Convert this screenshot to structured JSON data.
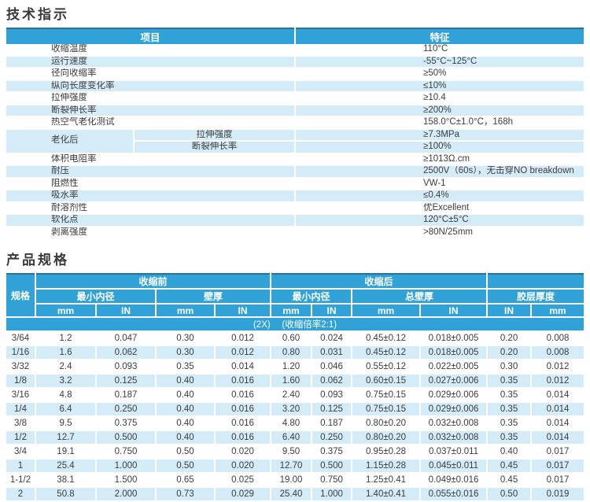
{
  "colors": {
    "header_blue": "#31a2d8",
    "row_light_blue": "#d4ebf8",
    "top_border_blue": "#2a6f9f",
    "text": "#3d3d3d"
  },
  "tech": {
    "title": "技术指示",
    "headers": {
      "item": "项目",
      "feature": "特征"
    },
    "rows": [
      {
        "item": "收缩温度",
        "value": "110°C",
        "tint": false
      },
      {
        "item": "运行速度",
        "value": "-55°C~125°C",
        "tint": true
      },
      {
        "item": "径向收缩率",
        "value": "≥50%",
        "tint": false
      },
      {
        "item": "纵向长度变化率",
        "value": "≤10%",
        "tint": true
      },
      {
        "item": "拉伸强度",
        "value": "≥10.4",
        "tint": false
      },
      {
        "item": "断裂伸长率",
        "value": "≥200%",
        "tint": true
      },
      {
        "item": "热空气老化测试",
        "value": "158.0°C±1.0°C，168h",
        "tint": false
      },
      {
        "group": "老化后",
        "item": "拉伸强度",
        "value": "≥7.3MPa",
        "tint": true,
        "item_white": true
      },
      {
        "in_group": true,
        "item": "断裂伸长率",
        "value": "≥100%",
        "tint": true
      },
      {
        "item": "体积电阻率",
        "value": "≥1013Ω.cm",
        "tint": false
      },
      {
        "item": "耐压",
        "value": "2500V（60s），无击穿NO breakdown",
        "tint": true
      },
      {
        "item": "阻燃性",
        "value": "VW-1",
        "tint": false
      },
      {
        "item": "吸水率",
        "value": "≤0.4%",
        "tint": true
      },
      {
        "item": "耐溶剂性",
        "value": "优Excellent",
        "tint": false
      },
      {
        "item": "软化点",
        "value": "120°C±5°C",
        "tint": true
      },
      {
        "item": "剥离强度",
        "value": ">80N/25mm",
        "tint": false
      }
    ]
  },
  "spec": {
    "title": "产品规格",
    "header": {
      "spec_col": "规格",
      "before": "收缩前",
      "after": "收缩后",
      "min_id": "最小内径",
      "wall": "壁厚",
      "total_wall": "总壁厚",
      "adhesive": "胶层厚度",
      "units": [
        "mm",
        "IN",
        "mm",
        "IN",
        "mm",
        "IN",
        "mm",
        "IN",
        "IN",
        "mm"
      ]
    },
    "ratio_note": "(2X)　 (收缩倍率2:1)",
    "rows": [
      [
        "3/64",
        "1.2",
        "0.047",
        "0.30",
        "0.012",
        "0.60",
        "0.024",
        "0.45±0.12",
        "0.018±0.005",
        "0.20",
        "0.008"
      ],
      [
        "1/16",
        "1.6",
        "0.062",
        "0.30",
        "0.012",
        "0.80",
        "0.031",
        "0.45±0.12",
        "0.018±0.005",
        "0.20",
        "0.008"
      ],
      [
        "3/32",
        "2.4",
        "0.093",
        "0.35",
        "0.014",
        "1.20",
        "0.046",
        "0.55±0.12",
        "0.022±0.005",
        "0.30",
        "0.012"
      ],
      [
        "1/8",
        "3.2",
        "0.125",
        "0.40",
        "0.016",
        "1.60",
        "0.062",
        "0.60±0.15",
        "0.027±0.006",
        "0.35",
        "0.012"
      ],
      [
        "3/16",
        "4.8",
        "0.187",
        "0.40",
        "0.016",
        "2.40",
        "0.093",
        "0.75±0.15",
        "0.029±0.006",
        "0.35",
        "0.014"
      ],
      [
        "1/4",
        "6.4",
        "0.250",
        "0.40",
        "0.016",
        "3.20",
        "0.125",
        "0.75±0.15",
        "0.029±0.006",
        "0.35",
        "0.014"
      ],
      [
        "3/8",
        "9.5",
        "0.375",
        "0.40",
        "0.016",
        "4.80",
        "0.187",
        "0.80±0.20",
        "0.032±0.008",
        "0.35",
        "0.014"
      ],
      [
        "1/2",
        "12.7",
        "0.500",
        "0.40",
        "0.016",
        "6.40",
        "0.250",
        "0.80±0.20",
        "0.032±0.008",
        "0.35",
        "0.014"
      ],
      [
        "3/4",
        "19.1",
        "0.750",
        "0.50",
        "0.020",
        "9.50",
        "0.375",
        "0.95±0.28",
        "0.037±0.011",
        "0.40",
        "0.017"
      ],
      [
        "1",
        "25.4",
        "1.000",
        "0.50",
        "0.020",
        "12.70",
        "0.500",
        "1.15±0.28",
        "0.045±0.011",
        "0.45",
        "0.017"
      ],
      [
        "1-1/2",
        "38.1",
        "1.500",
        "0.65",
        "0.025",
        "19.00",
        "0.750",
        "1.25±0.41",
        "0.049±0.016",
        "0.45",
        "0.017"
      ],
      [
        "2",
        "50.8",
        "2.000",
        "0.73",
        "0.029",
        "25.40",
        "1.000",
        "1.40±0.41",
        "0.055±0.016",
        "0.50",
        "0.019"
      ]
    ]
  }
}
